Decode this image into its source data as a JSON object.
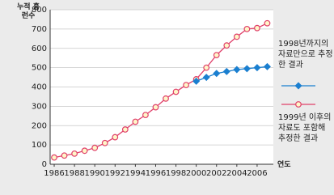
{
  "chart_data": {
    "type": "line",
    "y_label": "누적 홈런수",
    "x_label": "연도",
    "x": [
      1986,
      1987,
      1988,
      1989,
      1990,
      1991,
      1992,
      1993,
      1994,
      1995,
      1996,
      1997,
      1998,
      1999,
      2000,
      2001,
      2002,
      2003,
      2004,
      2005,
      2006,
      2007
    ],
    "series": [
      {
        "name": "1998년까지의 자료만으로 추정한 결과",
        "color": "#1a7fd0",
        "marker": "diamond",
        "values": [
          null,
          null,
          null,
          null,
          null,
          null,
          null,
          null,
          null,
          null,
          null,
          null,
          null,
          null,
          430,
          450,
          470,
          480,
          490,
          495,
          500,
          505
        ]
      },
      {
        "name": "1999년 이후의 자료도 포함해 추정한 결과",
        "color": "#e0406a",
        "marker": "circle",
        "values": [
          35,
          45,
          55,
          70,
          85,
          110,
          140,
          180,
          220,
          255,
          295,
          340,
          375,
          410,
          440,
          500,
          565,
          615,
          660,
          700,
          705,
          730
        ]
      }
    ],
    "xlim": [
      1985.6,
      2007.6
    ],
    "xticks": [
      1986,
      1988,
      1990,
      1992,
      1994,
      1996,
      1998,
      2000,
      2002,
      2004,
      2006
    ],
    "ylim": [
      0,
      800
    ],
    "yticks": [
      0,
      100,
      200,
      300,
      400,
      500,
      600,
      700,
      800
    ],
    "grid": true
  }
}
